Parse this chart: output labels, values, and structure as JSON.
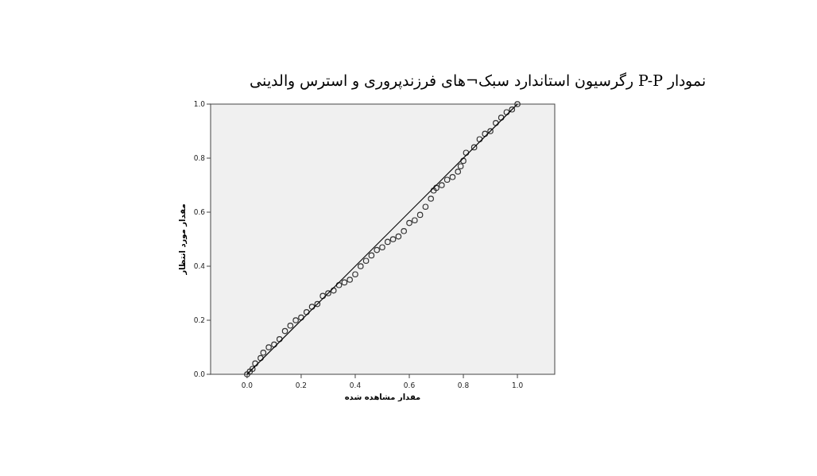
{
  "chart_data": {
    "type": "scatter",
    "title": "نمودار P-P رگرسیون استاندارد سبک¬های فرزندپروری و استرس والدینی",
    "xlabel": "مقدار مشاهده شده",
    "ylabel": "مقدار مورد انتظار",
    "xlim": [
      -0.135,
      1.138
    ],
    "ylim": [
      0,
      1
    ],
    "xticks": [
      {
        "value": 0,
        "label": "0.0"
      },
      {
        "value": 0.2,
        "label": "0.2"
      },
      {
        "value": 0.4,
        "label": "0.4"
      },
      {
        "value": 0.6,
        "label": "0.6"
      },
      {
        "value": 0.8,
        "label": "0.8"
      },
      {
        "value": 1,
        "label": "1.0"
      }
    ],
    "yticks": [
      {
        "value": 0,
        "label": "0.0"
      },
      {
        "value": 0.2,
        "label": "0.2"
      },
      {
        "value": 0.4,
        "label": "0.4"
      },
      {
        "value": 0.6,
        "label": "0.6"
      },
      {
        "value": 0.8,
        "label": "0.8"
      },
      {
        "value": 1,
        "label": "1.0"
      }
    ],
    "series": [
      {
        "color": "#333333",
        "marker": "circle",
        "x": [
          0,
          0.01,
          0.02,
          0.03,
          0.05,
          0.06,
          0.08,
          0.1,
          0.12,
          0.14,
          0.16,
          0.18,
          0.2,
          0.22,
          0.24,
          0.26,
          0.28,
          0.3,
          0.32,
          0.34,
          0.36,
          0.38,
          0.4,
          0.42,
          0.44,
          0.46,
          0.48,
          0.5,
          0.52,
          0.54,
          0.56,
          0.58,
          0.6,
          0.62,
          0.64,
          0.66,
          0.68,
          0.69,
          0.7,
          0.72,
          0.74,
          0.76,
          0.78,
          0.79,
          0.8,
          0.81,
          0.84,
          0.86,
          0.88,
          0.9,
          0.92,
          0.94,
          0.96,
          0.98,
          1.0
        ],
        "values": [
          0,
          0.01,
          0.02,
          0.04,
          0.06,
          0.08,
          0.1,
          0.11,
          0.13,
          0.16,
          0.18,
          0.2,
          0.21,
          0.23,
          0.25,
          0.26,
          0.29,
          0.3,
          0.31,
          0.33,
          0.34,
          0.35,
          0.37,
          0.4,
          0.42,
          0.44,
          0.46,
          0.47,
          0.49,
          0.5,
          0.51,
          0.53,
          0.56,
          0.57,
          0.59,
          0.62,
          0.65,
          0.68,
          0.69,
          0.7,
          0.72,
          0.73,
          0.75,
          0.77,
          0.79,
          0.82,
          0.84,
          0.87,
          0.89,
          0.9,
          0.93,
          0.95,
          0.97,
          0.98,
          1.0
        ]
      },
      {
        "type": "line",
        "color": "#000000",
        "line_style": "solid",
        "marker": "none",
        "x": [
          0,
          1
        ],
        "values": [
          0,
          1
        ]
      }
    ]
  }
}
